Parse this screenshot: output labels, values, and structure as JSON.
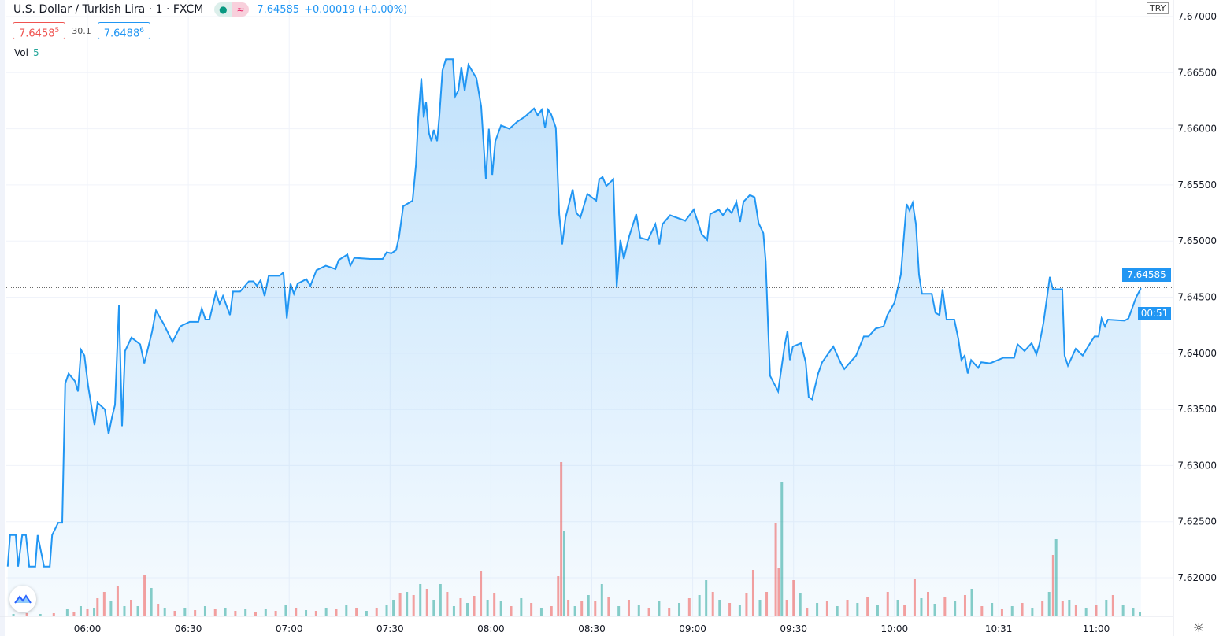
{
  "header": {
    "title": "U.S. Dollar / Turkish Lira · 1 · FXCM",
    "last": "7.64585",
    "change": "+0.00019 (+0.00%)",
    "market_open_icon": "dot-icon",
    "delayed_icon": "wave-icon"
  },
  "quote": {
    "bid_main": "7.6458",
    "bid_pip": "5",
    "spread": "30.1",
    "ask_main": "7.6488",
    "ask_pip": "6"
  },
  "volume": {
    "label": "Vol",
    "value": "5"
  },
  "currency": "TRY",
  "last_price_label": "7.64585",
  "countdown": "00:51",
  "colors": {
    "line": "#2196f3",
    "up": "#26a69a",
    "down": "#ef5350",
    "grid": "#f0f3fa"
  },
  "chart_data": {
    "type": "area",
    "title": "U.S. Dollar / Turkish Lira · 1 · FXCM",
    "x_unit": "minutes since 06:00",
    "x_range": [
      -24,
      326
    ],
    "ylim": [
      7.6175,
      7.6705
    ],
    "y_ticks": [
      "7.67000",
      "7.66500",
      "7.66000",
      "7.65500",
      "7.65000",
      "7.64500",
      "7.64000",
      "7.63500",
      "7.63000",
      "7.62500",
      "7.62000"
    ],
    "x_ticks": [
      {
        "label": "06:00",
        "t": 0
      },
      {
        "label": "06:30",
        "t": 30
      },
      {
        "label": "07:00",
        "t": 60
      },
      {
        "label": "07:30",
        "t": 90
      },
      {
        "label": "08:00",
        "t": 120
      },
      {
        "label": "08:30",
        "t": 150
      },
      {
        "label": "09:00",
        "t": 180
      },
      {
        "label": "09:30",
        "t": 210
      },
      {
        "label": "10:00",
        "t": 240
      },
      {
        "label": "10:31",
        "t": 271
      },
      {
        "label": "11:00",
        "t": 300
      }
    ],
    "last_price": 7.64585,
    "price": [
      [
        -23.7,
        7.621
      ],
      [
        -23.0,
        7.6238
      ],
      [
        -21.3,
        7.6238
      ],
      [
        -20.6,
        7.621
      ],
      [
        -19.4,
        7.6238
      ],
      [
        -18.3,
        7.6238
      ],
      [
        -17.3,
        7.621
      ],
      [
        -15.5,
        7.621
      ],
      [
        -14.8,
        7.6238
      ],
      [
        -12.9,
        7.621
      ],
      [
        -11.2,
        7.621
      ],
      [
        -10.5,
        7.6238
      ],
      [
        -8.7,
        7.6249
      ],
      [
        -7.5,
        7.6249
      ],
      [
        -6.6,
        7.6373
      ],
      [
        -5.6,
        7.6382
      ],
      [
        -3.7,
        7.6375
      ],
      [
        -2.8,
        7.6366
      ],
      [
        -1.9,
        7.6403
      ],
      [
        -0.9,
        7.6398
      ],
      [
        0.2,
        7.6371
      ],
      [
        2.1,
        7.6336
      ],
      [
        3.0,
        7.6356
      ],
      [
        5.2,
        7.635
      ],
      [
        6.3,
        7.6328
      ],
      [
        7.3,
        7.6343
      ],
      [
        8.2,
        7.6354
      ],
      [
        9.4,
        7.6443
      ],
      [
        10.3,
        7.6335
      ],
      [
        11.2,
        7.6402
      ],
      [
        13.1,
        7.6414
      ],
      [
        15.7,
        7.6408
      ],
      [
        16.9,
        7.6391
      ],
      [
        19.2,
        7.6419
      ],
      [
        20.4,
        7.6438
      ],
      [
        22.7,
        7.6426
      ],
      [
        25.3,
        7.641
      ],
      [
        27.6,
        7.6424
      ],
      [
        30.4,
        7.6428
      ],
      [
        33.0,
        7.6428
      ],
      [
        34.0,
        7.644
      ],
      [
        35.1,
        7.643
      ],
      [
        36.3,
        7.643
      ],
      [
        38.2,
        7.6454
      ],
      [
        39.3,
        7.6444
      ],
      [
        40.3,
        7.6451
      ],
      [
        42.4,
        7.6434
      ],
      [
        43.3,
        7.6455
      ],
      [
        45.4,
        7.6455
      ],
      [
        48.0,
        7.6464
      ],
      [
        49.4,
        7.6464
      ],
      [
        50.4,
        7.646
      ],
      [
        51.5,
        7.6465
      ],
      [
        52.7,
        7.6451
      ],
      [
        53.9,
        7.6469
      ],
      [
        57.1,
        7.6469
      ],
      [
        58.3,
        7.6472
      ],
      [
        59.3,
        7.6431
      ],
      [
        60.4,
        7.6462
      ],
      [
        61.4,
        7.6453
      ],
      [
        62.5,
        7.6462
      ],
      [
        65.1,
        7.6466
      ],
      [
        66.3,
        7.646
      ],
      [
        68.1,
        7.6474
      ],
      [
        70.9,
        7.6478
      ],
      [
        73.8,
        7.6475
      ],
      [
        74.7,
        7.6483
      ],
      [
        77.3,
        7.6488
      ],
      [
        78.2,
        7.6478
      ],
      [
        79.4,
        7.6485
      ],
      [
        84.1,
        7.6484
      ],
      [
        87.8,
        7.6484
      ],
      [
        89.0,
        7.649
      ],
      [
        90.4,
        7.6489
      ],
      [
        91.8,
        7.6492
      ],
      [
        92.7,
        7.6504
      ],
      [
        93.9,
        7.6531
      ],
      [
        96.7,
        7.6536
      ],
      [
        97.7,
        7.6568
      ],
      [
        98.4,
        7.661
      ],
      [
        99.3,
        7.6645
      ],
      [
        100.0,
        7.661
      ],
      [
        100.7,
        7.6624
      ],
      [
        101.6,
        7.6596
      ],
      [
        102.3,
        7.6589
      ],
      [
        103.0,
        7.6599
      ],
      [
        104.0,
        7.6589
      ],
      [
        104.7,
        7.6613
      ],
      [
        105.6,
        7.6652
      ],
      [
        106.6,
        7.6662
      ],
      [
        108.7,
        7.6662
      ],
      [
        109.4,
        7.6629
      ],
      [
        110.3,
        7.6634
      ],
      [
        111.2,
        7.6655
      ],
      [
        112.2,
        7.6634
      ],
      [
        113.3,
        7.6657
      ],
      [
        115.7,
        7.6645
      ],
      [
        117.1,
        7.662
      ],
      [
        118.5,
        7.6555
      ],
      [
        119.4,
        7.66
      ],
      [
        120.4,
        7.6559
      ],
      [
        121.3,
        7.6589
      ],
      [
        123.0,
        7.6603
      ],
      [
        125.5,
        7.66
      ],
      [
        127.7,
        7.6606
      ],
      [
        130.2,
        7.6611
      ],
      [
        132.8,
        7.6618
      ],
      [
        133.9,
        7.6612
      ],
      [
        135.1,
        7.6617
      ],
      [
        136.1,
        7.6601
      ],
      [
        137.0,
        7.6617
      ],
      [
        137.9,
        7.6613
      ],
      [
        139.3,
        7.6601
      ],
      [
        140.3,
        7.6524
      ],
      [
        141.2,
        7.6497
      ],
      [
        142.2,
        7.6521
      ],
      [
        144.3,
        7.6546
      ],
      [
        145.4,
        7.6525
      ],
      [
        146.6,
        7.6521
      ],
      [
        148.7,
        7.6542
      ],
      [
        151.3,
        7.6536
      ],
      [
        152.2,
        7.6555
      ],
      [
        153.2,
        7.6557
      ],
      [
        154.3,
        7.6549
      ],
      [
        156.4,
        7.6555
      ],
      [
        157.4,
        7.6459
      ],
      [
        158.5,
        7.6501
      ],
      [
        159.5,
        7.6484
      ],
      [
        161.1,
        7.6504
      ],
      [
        163.2,
        7.6524
      ],
      [
        164.4,
        7.6503
      ],
      [
        166.7,
        7.6501
      ],
      [
        168.9,
        7.6515
      ],
      [
        170.1,
        7.6497
      ],
      [
        171.0,
        7.6515
      ],
      [
        173.3,
        7.6523
      ],
      [
        177.8,
        7.6518
      ],
      [
        180.3,
        7.6528
      ],
      [
        182.7,
        7.6506
      ],
      [
        184.3,
        7.6501
      ],
      [
        185.2,
        7.6524
      ],
      [
        187.8,
        7.6528
      ],
      [
        189.0,
        7.6523
      ],
      [
        190.4,
        7.6529
      ],
      [
        191.6,
        7.6525
      ],
      [
        193.0,
        7.6535
      ],
      [
        194.1,
        7.6517
      ],
      [
        195.1,
        7.6535
      ],
      [
        197.0,
        7.6541
      ],
      [
        198.4,
        7.6539
      ],
      [
        199.6,
        7.6516
      ],
      [
        201.0,
        7.6507
      ],
      [
        201.7,
        7.6482
      ],
      [
        202.3,
        7.6434
      ],
      [
        203.0,
        7.638
      ],
      [
        205.4,
        7.6366
      ],
      [
        207.3,
        7.6406
      ],
      [
        208.2,
        7.642
      ],
      [
        208.9,
        7.6394
      ],
      [
        209.8,
        7.6406
      ],
      [
        212.2,
        7.6409
      ],
      [
        213.6,
        7.6392
      ],
      [
        214.5,
        7.6361
      ],
      [
        215.5,
        7.6359
      ],
      [
        217.3,
        7.6382
      ],
      [
        218.5,
        7.6392
      ],
      [
        221.8,
        7.6406
      ],
      [
        224.1,
        7.6391
      ],
      [
        225.1,
        7.6386
      ],
      [
        228.6,
        7.6398
      ],
      [
        230.9,
        7.6415
      ],
      [
        232.3,
        7.6415
      ],
      [
        234.4,
        7.6422
      ],
      [
        236.8,
        7.6424
      ],
      [
        237.9,
        7.6434
      ],
      [
        240.0,
        7.6445
      ],
      [
        241.9,
        7.647
      ],
      [
        242.8,
        7.6504
      ],
      [
        243.6,
        7.6533
      ],
      [
        244.5,
        7.6527
      ],
      [
        245.4,
        7.6534
      ],
      [
        246.4,
        7.6515
      ],
      [
        247.3,
        7.647
      ],
      [
        248.2,
        7.6453
      ],
      [
        251.1,
        7.6453
      ],
      [
        252.2,
        7.6436
      ],
      [
        253.4,
        7.6434
      ],
      [
        254.3,
        7.6457
      ],
      [
        255.5,
        7.643
      ],
      [
        257.8,
        7.643
      ],
      [
        259.0,
        7.6413
      ],
      [
        259.9,
        7.6394
      ],
      [
        260.9,
        7.6398
      ],
      [
        261.8,
        7.6382
      ],
      [
        262.8,
        7.6394
      ],
      [
        264.9,
        7.6387
      ],
      [
        265.8,
        7.6392
      ],
      [
        268.4,
        7.6391
      ],
      [
        272.4,
        7.6396
      ],
      [
        275.6,
        7.6396
      ],
      [
        276.6,
        7.6408
      ],
      [
        278.7,
        7.6402
      ],
      [
        280.8,
        7.6409
      ],
      [
        282.2,
        7.6399
      ],
      [
        283.1,
        7.6408
      ],
      [
        284.3,
        7.6427
      ],
      [
        286.2,
        7.6468
      ],
      [
        287.1,
        7.6457
      ],
      [
        289.9,
        7.6457
      ],
      [
        290.6,
        7.6398
      ],
      [
        291.6,
        7.6389
      ],
      [
        293.9,
        7.6404
      ],
      [
        296.0,
        7.6398
      ],
      [
        298.4,
        7.641
      ],
      [
        299.5,
        7.6415
      ],
      [
        300.7,
        7.6415
      ],
      [
        301.6,
        7.6431
      ],
      [
        302.6,
        7.6424
      ],
      [
        303.5,
        7.643
      ],
      [
        308.4,
        7.6429
      ],
      [
        309.6,
        7.6431
      ],
      [
        310.8,
        7.6441
      ],
      [
        311.9,
        7.645
      ],
      [
        313.3,
        7.6458
      ]
    ],
    "volume": [
      [
        -22,
        2,
        "u"
      ],
      [
        -18,
        3,
        "d"
      ],
      [
        -14,
        2,
        "u"
      ],
      [
        -10,
        3,
        "d"
      ],
      [
        -6,
        8,
        "u"
      ],
      [
        -4,
        5,
        "d"
      ],
      [
        -2,
        12,
        "u"
      ],
      [
        0,
        8,
        "d"
      ],
      [
        2,
        10,
        "u"
      ],
      [
        3,
        22,
        "d"
      ],
      [
        5,
        30,
        "d"
      ],
      [
        7,
        18,
        "u"
      ],
      [
        9,
        38,
        "d"
      ],
      [
        11,
        12,
        "u"
      ],
      [
        13,
        20,
        "d"
      ],
      [
        15,
        12,
        "u"
      ],
      [
        17,
        52,
        "d"
      ],
      [
        19,
        35,
        "u"
      ],
      [
        21,
        15,
        "d"
      ],
      [
        23,
        10,
        "u"
      ],
      [
        26,
        6,
        "d"
      ],
      [
        29,
        9,
        "u"
      ],
      [
        32,
        7,
        "d"
      ],
      [
        35,
        12,
        "u"
      ],
      [
        38,
        8,
        "d"
      ],
      [
        41,
        10,
        "u"
      ],
      [
        44,
        6,
        "d"
      ],
      [
        47,
        8,
        "u"
      ],
      [
        50,
        5,
        "d"
      ],
      [
        53,
        8,
        "u"
      ],
      [
        56,
        6,
        "d"
      ],
      [
        59,
        14,
        "u"
      ],
      [
        62,
        9,
        "d"
      ],
      [
        65,
        7,
        "u"
      ],
      [
        68,
        6,
        "d"
      ],
      [
        71,
        9,
        "u"
      ],
      [
        74,
        8,
        "d"
      ],
      [
        77,
        14,
        "u"
      ],
      [
        80,
        9,
        "d"
      ],
      [
        83,
        6,
        "u"
      ],
      [
        86,
        10,
        "d"
      ],
      [
        89,
        14,
        "u"
      ],
      [
        91,
        20,
        "u"
      ],
      [
        93,
        28,
        "d"
      ],
      [
        95,
        30,
        "u"
      ],
      [
        97,
        26,
        "d"
      ],
      [
        99,
        40,
        "u"
      ],
      [
        101,
        34,
        "d"
      ],
      [
        103,
        20,
        "u"
      ],
      [
        105,
        40,
        "u"
      ],
      [
        107,
        30,
        "d"
      ],
      [
        109,
        12,
        "u"
      ],
      [
        111,
        22,
        "d"
      ],
      [
        113,
        16,
        "u"
      ],
      [
        115,
        25,
        "d"
      ],
      [
        117,
        56,
        "d"
      ],
      [
        119,
        20,
        "u"
      ],
      [
        121,
        28,
        "d"
      ],
      [
        123,
        18,
        "u"
      ],
      [
        126,
        12,
        "d"
      ],
      [
        129,
        22,
        "u"
      ],
      [
        132,
        16,
        "d"
      ],
      [
        135,
        10,
        "u"
      ],
      [
        138,
        12,
        "d"
      ],
      [
        140,
        50,
        "d"
      ],
      [
        140.9,
        195,
        "d"
      ],
      [
        141.8,
        107,
        "u"
      ],
      [
        143,
        20,
        "d"
      ],
      [
        145,
        12,
        "u"
      ],
      [
        147,
        18,
        "d"
      ],
      [
        149,
        26,
        "u"
      ],
      [
        151,
        18,
        "d"
      ],
      [
        153,
        40,
        "u"
      ],
      [
        155,
        24,
        "d"
      ],
      [
        158,
        12,
        "u"
      ],
      [
        161,
        20,
        "d"
      ],
      [
        164,
        14,
        "u"
      ],
      [
        167,
        10,
        "d"
      ],
      [
        170,
        18,
        "u"
      ],
      [
        173,
        10,
        "d"
      ],
      [
        176,
        16,
        "u"
      ],
      [
        179,
        22,
        "d"
      ],
      [
        182,
        26,
        "u"
      ],
      [
        184,
        45,
        "u"
      ],
      [
        186,
        30,
        "d"
      ],
      [
        188,
        20,
        "u"
      ],
      [
        191,
        16,
        "d"
      ],
      [
        194,
        14,
        "u"
      ],
      [
        196,
        28,
        "d"
      ],
      [
        198,
        58,
        "d"
      ],
      [
        200,
        20,
        "u"
      ],
      [
        202,
        30,
        "d"
      ],
      [
        204.7,
        117,
        "d"
      ],
      [
        205.6,
        60,
        "d"
      ],
      [
        206.5,
        170,
        "u"
      ],
      [
        208,
        20,
        "d"
      ],
      [
        210,
        45,
        "d"
      ],
      [
        212,
        28,
        "u"
      ],
      [
        214,
        10,
        "d"
      ],
      [
        217,
        16,
        "u"
      ],
      [
        220,
        18,
        "d"
      ],
      [
        223,
        12,
        "u"
      ],
      [
        226,
        20,
        "d"
      ],
      [
        229,
        16,
        "u"
      ],
      [
        232,
        24,
        "d"
      ],
      [
        235,
        14,
        "u"
      ],
      [
        238,
        30,
        "d"
      ],
      [
        241,
        20,
        "u"
      ],
      [
        243,
        14,
        "d"
      ],
      [
        246,
        47,
        "d"
      ],
      [
        248,
        22,
        "u"
      ],
      [
        250,
        30,
        "d"
      ],
      [
        252,
        15,
        "u"
      ],
      [
        255,
        24,
        "d"
      ],
      [
        258,
        18,
        "u"
      ],
      [
        261,
        26,
        "d"
      ],
      [
        263,
        34,
        "u"
      ],
      [
        266,
        12,
        "d"
      ],
      [
        269,
        16,
        "u"
      ],
      [
        272,
        8,
        "d"
      ],
      [
        275,
        12,
        "u"
      ],
      [
        278,
        16,
        "d"
      ],
      [
        281,
        10,
        "u"
      ],
      [
        284,
        18,
        "d"
      ],
      [
        286,
        30,
        "u"
      ],
      [
        287.2,
        77,
        "d"
      ],
      [
        288.1,
        97,
        "u"
      ],
      [
        290,
        18,
        "d"
      ],
      [
        292,
        20,
        "u"
      ],
      [
        294,
        14,
        "d"
      ],
      [
        297,
        10,
        "u"
      ],
      [
        300,
        14,
        "d"
      ],
      [
        303,
        20,
        "u"
      ],
      [
        305,
        26,
        "d"
      ],
      [
        308,
        14,
        "u"
      ],
      [
        311,
        10,
        "u"
      ],
      [
        313,
        5,
        "u"
      ]
    ]
  }
}
